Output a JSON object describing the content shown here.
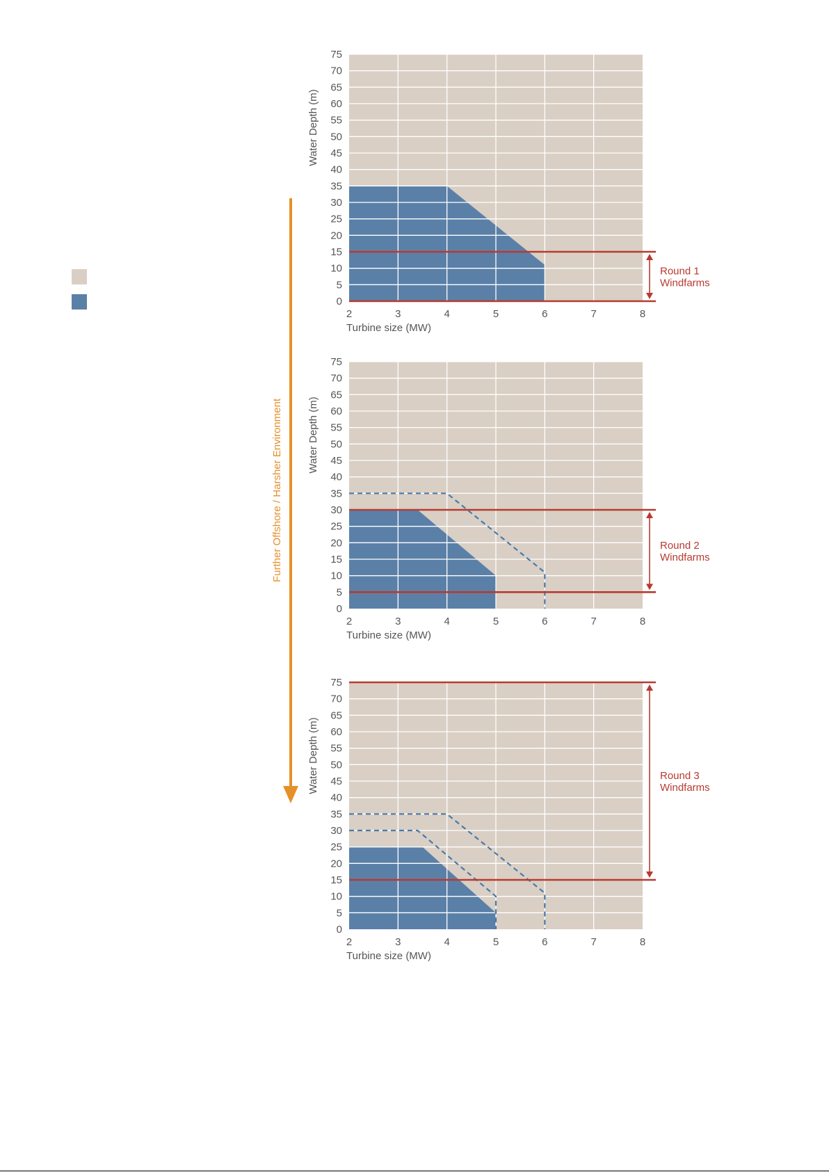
{
  "colors": {
    "plot_bg": "#d9cfc4",
    "feasible": "#5b80a8",
    "dash": "#4a7aab",
    "round_line": "#b83a30",
    "arrow": "#e6902a",
    "tick_text": "#555555",
    "grid": "#ffffff"
  },
  "legend": {
    "items": [
      {
        "swatch": "#d9cfc4",
        "label": ""
      },
      {
        "swatch": "#5b80a8",
        "label": ""
      }
    ]
  },
  "side_arrow": {
    "label": "Further Offshore / Harsher Environment"
  },
  "chart_data": [
    {
      "type": "area",
      "xlabel": "Turbine size (MW)",
      "ylabel": "Water Depth (m)",
      "xlim": [
        2,
        8
      ],
      "ylim": [
        0,
        75
      ],
      "x_ticks": [
        2,
        3,
        4,
        5,
        6,
        7,
        8
      ],
      "y_ticks": [
        0,
        5,
        10,
        15,
        20,
        25,
        30,
        35,
        40,
        45,
        50,
        55,
        60,
        65,
        70,
        75
      ],
      "grid": true,
      "feasible_region": [
        [
          2,
          0
        ],
        [
          2,
          35
        ],
        [
          4,
          35
        ],
        [
          6,
          11
        ],
        [
          6,
          0
        ]
      ],
      "dashed_boundaries": [],
      "band": {
        "lower": 0,
        "upper": 15,
        "label": [
          "Round 1",
          "Windfarms"
        ]
      }
    },
    {
      "type": "area",
      "xlabel": "Turbine size (MW)",
      "ylabel": "Water Depth (m)",
      "xlim": [
        2,
        8
      ],
      "ylim": [
        0,
        75
      ],
      "x_ticks": [
        2,
        3,
        4,
        5,
        6,
        7,
        8
      ],
      "y_ticks": [
        0,
        5,
        10,
        15,
        20,
        25,
        30,
        35,
        40,
        45,
        50,
        55,
        60,
        65,
        70,
        75
      ],
      "grid": true,
      "feasible_region": [
        [
          2,
          0
        ],
        [
          2,
          30
        ],
        [
          3.4,
          30
        ],
        [
          5,
          10
        ],
        [
          5,
          0
        ]
      ],
      "dashed_boundaries": [
        [
          [
            2,
            35
          ],
          [
            4,
            35
          ],
          [
            6,
            11
          ],
          [
            6,
            0
          ]
        ]
      ],
      "band": {
        "lower": 5,
        "upper": 30,
        "label": [
          "Round 2",
          "Windfarms"
        ]
      }
    },
    {
      "type": "area",
      "xlabel": "Turbine size (MW)",
      "ylabel": "Water Depth (m)",
      "xlim": [
        2,
        8
      ],
      "ylim": [
        0,
        75
      ],
      "x_ticks": [
        2,
        3,
        4,
        5,
        6,
        7,
        8
      ],
      "y_ticks": [
        0,
        5,
        10,
        15,
        20,
        25,
        30,
        35,
        40,
        45,
        50,
        55,
        60,
        65,
        70,
        75
      ],
      "grid": true,
      "feasible_region": [
        [
          2,
          0
        ],
        [
          2,
          25
        ],
        [
          3.5,
          25
        ],
        [
          5,
          5
        ],
        [
          5,
          0
        ]
      ],
      "dashed_boundaries": [
        [
          [
            2,
            35
          ],
          [
            4,
            35
          ],
          [
            6,
            11
          ],
          [
            6,
            0
          ]
        ],
        [
          [
            2,
            30
          ],
          [
            3.4,
            30
          ],
          [
            5,
            10
          ],
          [
            5,
            0
          ]
        ]
      ],
      "band": {
        "lower": 15,
        "upper": 75,
        "label": [
          "Round 3",
          "Windfarms"
        ]
      }
    }
  ]
}
